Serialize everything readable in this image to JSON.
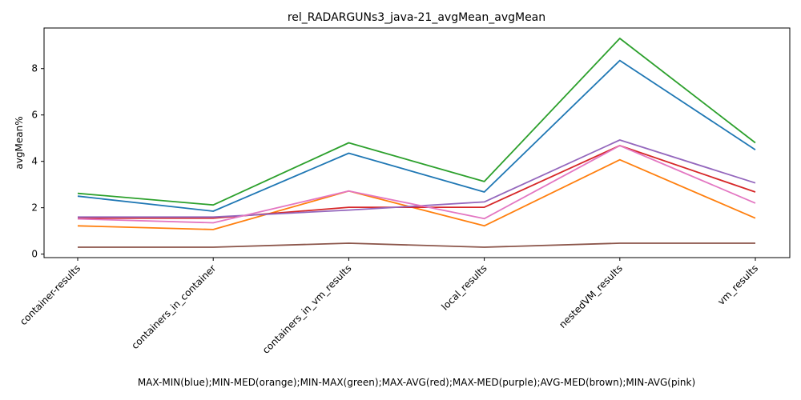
{
  "chart_data": {
    "type": "line",
    "title": "rel_RADARGUNs3_java-21_avgMean_avgMean",
    "xlabel": "MAX-MIN(blue);MIN-MED(orange);MIN-MAX(green);MAX-AVG(red);MAX-MED(purple);AVG-MED(brown);MIN-AVG(pink)",
    "ylabel": "avgMean%",
    "categories": [
      "container-results",
      "containers_in_container",
      "containers_in_vm_results",
      "local_results",
      "nestedVM_results",
      "vm_results"
    ],
    "ylim": [
      -0.15,
      9.75
    ],
    "yticks": [
      0,
      2,
      4,
      6,
      8
    ],
    "grid": false,
    "legend": "none",
    "series": [
      {
        "color": "#1f77b4",
        "values": [
          2.5,
          1.85,
          4.35,
          2.68,
          8.35,
          4.5
        ]
      },
      {
        "color": "#ff7f0e",
        "values": [
          1.22,
          1.06,
          2.72,
          1.22,
          4.07,
          1.55
        ]
      },
      {
        "color": "#2ca02c",
        "values": [
          2.62,
          2.12,
          4.8,
          3.13,
          9.3,
          4.8
        ]
      },
      {
        "color": "#d62728",
        "values": [
          1.55,
          1.55,
          2.02,
          2.02,
          4.68,
          2.68
        ]
      },
      {
        "color": "#9467bd",
        "values": [
          1.6,
          1.6,
          1.9,
          2.25,
          4.92,
          3.07
        ]
      },
      {
        "color": "#8c564b",
        "values": [
          0.3,
          0.3,
          0.47,
          0.3,
          0.47,
          0.47
        ]
      },
      {
        "color": "#e377c2",
        "values": [
          1.52,
          1.35,
          2.72,
          1.53,
          4.68,
          2.2
        ]
      }
    ]
  }
}
